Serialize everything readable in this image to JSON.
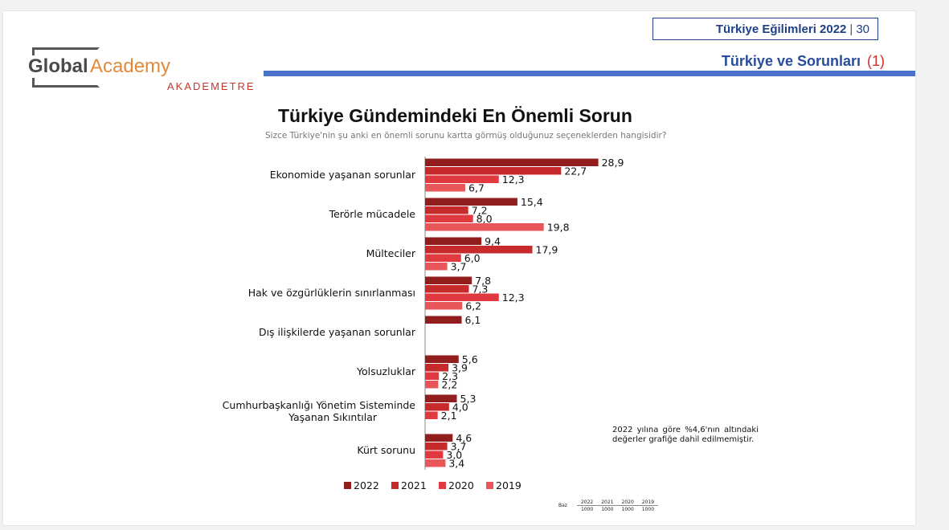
{
  "header": {
    "report_title": "Türkiye Eğilimleri 2022",
    "separator": "|",
    "page_number": "30",
    "section_title": "Türkiye ve Sorunları",
    "section_number": "(1)"
  },
  "logo": {
    "global": "Global",
    "academy": "Academy",
    "akademetre": "AKADEMETRE"
  },
  "colors": {
    "2022": "#921d1d",
    "2021": "#c62a2a",
    "2020": "#e0393f",
    "2019": "#e9565a",
    "header_blue": "#2a4c9c"
  },
  "chart_data": {
    "type": "bar",
    "orientation": "horizontal",
    "title": "Türkiye Gündemindeki En Önemli Sorun",
    "subtitle": "Sizce Türkiye'nin şu anki en önemli sorunu kartta görmüş olduğunuz seçeneklerden hangisidir?",
    "categories": [
      "Ekonomide yaşanan sorunlar",
      "Terörle mücadele",
      "Mülteciler",
      "Hak ve özgürlüklerin sınırlanması",
      "Dış ilişkilerde yaşanan sorunlar",
      "Yolsuzluklar",
      "Cumhurbaşkanlığı Yönetim Sisteminde Yaşanan Sıkıntılar",
      "Kürt sorunu"
    ],
    "series": [
      {
        "name": "2022",
        "values": [
          28.9,
          15.4,
          9.4,
          7.8,
          6.1,
          5.6,
          5.3,
          4.6
        ]
      },
      {
        "name": "2021",
        "values": [
          22.7,
          7.2,
          17.9,
          7.3,
          null,
          3.9,
          4.0,
          3.7
        ]
      },
      {
        "name": "2020",
        "values": [
          12.3,
          8.0,
          6.0,
          12.3,
          null,
          2.3,
          2.1,
          3.0
        ]
      },
      {
        "name": "2019",
        "values": [
          6.7,
          19.8,
          3.7,
          6.2,
          null,
          2.2,
          null,
          3.4
        ]
      }
    ],
    "value_format": "comma_one_decimal",
    "xlim": [
      0,
      30
    ],
    "legend": [
      "2022",
      "2021",
      "2020",
      "2019"
    ],
    "legend_position": "bottom"
  },
  "note": "2022 yılına göre %4,6'nın altındaki değerler grafiğe dahil edilmemiştir.",
  "base_table": {
    "label": "Baz",
    "years": [
      "2022",
      "2021",
      "2020",
      "2019"
    ],
    "values": [
      "1000",
      "1000",
      "1000",
      "1000"
    ]
  }
}
